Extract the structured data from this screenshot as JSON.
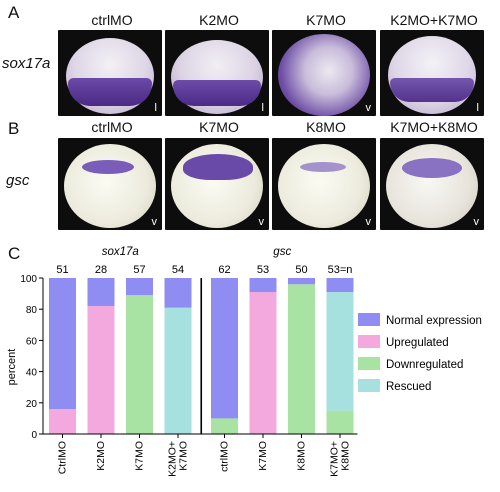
{
  "panel_a": {
    "label": "A",
    "row_label": "sox17a",
    "columns": [
      "ctrlMO",
      "K2MO",
      "K7MO",
      "K2MO+K7MO"
    ],
    "view_tags": [
      "l",
      "l",
      "v",
      "l"
    ]
  },
  "panel_b": {
    "label": "B",
    "row_label": "gsc",
    "columns": [
      "ctrlMO",
      "K7MO",
      "K8MO",
      "K7MO+K8MO"
    ],
    "view_tags": [
      "v",
      "v",
      "v",
      "v"
    ]
  },
  "panel_c": {
    "label": "C"
  },
  "chart_data": {
    "type": "bar",
    "stacked": true,
    "ylabel": "percent",
    "ylim": [
      0,
      100
    ],
    "yticks": [
      0,
      20,
      40,
      60,
      80,
      100
    ],
    "groups": [
      {
        "label": "sox17a",
        "categories": [
          "CtrlMO",
          "K2MO",
          "K7MO",
          "K2MO+\nK7MO"
        ]
      },
      {
        "label": "gsc",
        "categories": [
          "ctrlMO",
          "K7MO",
          "K8MO",
          "K7MO+\nK8MO"
        ]
      }
    ],
    "categories": [
      "CtrlMO",
      "K2MO",
      "K7MO",
      "K2MO+\nK7MO",
      "ctrlMO",
      "K7MO",
      "K8MO",
      "K7MO+\nK8MO"
    ],
    "n_labels": [
      "51",
      "28",
      "57",
      "54",
      "62",
      "53",
      "50",
      "53=n"
    ],
    "series": [
      {
        "name": "Normal expression",
        "color": "#8f8cf2",
        "values": [
          84,
          18,
          11,
          19,
          90,
          9,
          4,
          9
        ]
      },
      {
        "name": "Upregulated",
        "color": "#f3a9dd",
        "values": [
          16,
          82,
          0,
          0,
          0,
          91,
          0,
          0
        ]
      },
      {
        "name": "Downregulated",
        "color": "#a8e3a3",
        "values": [
          0,
          0,
          89,
          0,
          10,
          0,
          96,
          15
        ]
      },
      {
        "name": "Rescued",
        "color": "#a6e0df",
        "values": [
          0,
          0,
          0,
          81,
          0,
          0,
          0,
          76
        ]
      }
    ],
    "legend_position": "right"
  }
}
